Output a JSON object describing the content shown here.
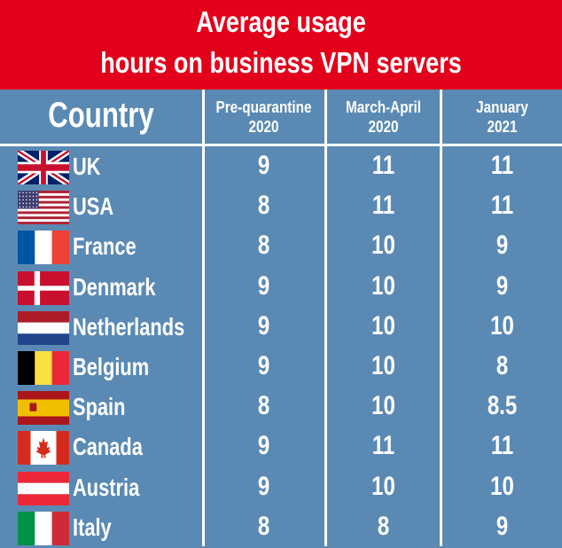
{
  "title_line1": "Average usage",
  "title_line2": "hours on business VPN servers",
  "colors": {
    "background": "#5a8ab4",
    "title_bar": "#e3001b",
    "text": "#ffffff",
    "grid": "#ffffff"
  },
  "chart_data": {
    "type": "table",
    "title": "Average usage hours on business VPN servers",
    "headers": [
      "Country",
      "Pre-quarantine 2020",
      "March-April 2020",
      "January 2021"
    ],
    "header_lines": {
      "country": "Country",
      "col1": [
        "Pre-quarantine",
        "2020"
      ],
      "col2": [
        "March-April",
        "2020"
      ],
      "col3": [
        "January",
        "2021"
      ]
    },
    "rows": [
      {
        "country": "UK",
        "flag": "uk-flag",
        "values": [
          "9",
          "11",
          "11"
        ]
      },
      {
        "country": "USA",
        "flag": "usa-flag",
        "values": [
          "8",
          "11",
          "11"
        ]
      },
      {
        "country": "France",
        "flag": "france-flag",
        "values": [
          "8",
          "10",
          "9"
        ]
      },
      {
        "country": "Denmark",
        "flag": "denmark-flag",
        "values": [
          "9",
          "10",
          "9"
        ]
      },
      {
        "country": "Netherlands",
        "flag": "netherlands-flag",
        "values": [
          "9",
          "10",
          "10"
        ]
      },
      {
        "country": "Belgium",
        "flag": "belgium-flag",
        "values": [
          "9",
          "10",
          "8"
        ]
      },
      {
        "country": "Spain",
        "flag": "spain-flag",
        "values": [
          "8",
          "10",
          "8.5"
        ]
      },
      {
        "country": "Canada",
        "flag": "canada-flag",
        "values": [
          "9",
          "11",
          "11"
        ]
      },
      {
        "country": "Austria",
        "flag": "austria-flag",
        "values": [
          "9",
          "10",
          "10"
        ]
      },
      {
        "country": "Italy",
        "flag": "italy-flag",
        "values": [
          "8",
          "8",
          "9"
        ]
      }
    ]
  }
}
